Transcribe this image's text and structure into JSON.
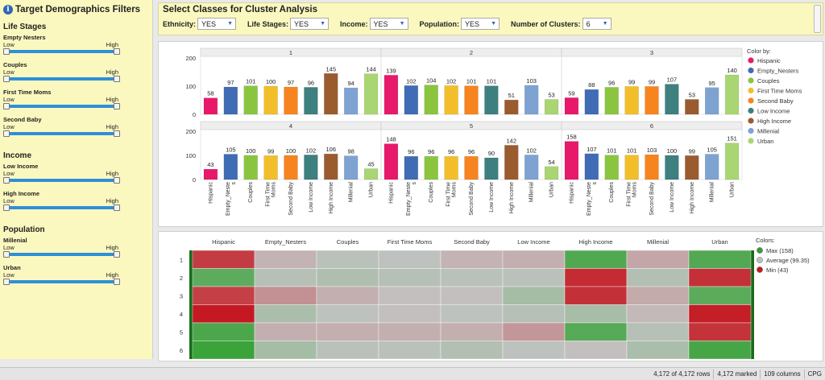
{
  "left_panel": {
    "title": "Target Demographics Filters",
    "sections": [
      {
        "title": "Life Stages",
        "sliders": [
          {
            "name": "Empty Nesters",
            "low": "Low",
            "high": "High"
          },
          {
            "name": "Couples",
            "low": "Low",
            "high": "High"
          },
          {
            "name": "First Time Moms",
            "low": "Low",
            "high": "High"
          },
          {
            "name": "Second Baby",
            "low": "Low",
            "high": "High"
          }
        ]
      },
      {
        "title": "Income",
        "sliders": [
          {
            "name": "Low Income",
            "low": "Low",
            "high": "High"
          },
          {
            "name": "High Income",
            "low": "Low",
            "high": "High"
          }
        ]
      },
      {
        "title": "Population",
        "sliders": [
          {
            "name": "Millenial",
            "low": "Low",
            "high": "High"
          },
          {
            "name": "Urban",
            "low": "Low",
            "high": "High"
          }
        ]
      }
    ]
  },
  "top_bar": {
    "title": "Select Classes for Cluster Analysis",
    "filters": [
      {
        "label": "Ethnicity:",
        "value": "YES"
      },
      {
        "label": "Life Stages:",
        "value": "YES"
      },
      {
        "label": "Income:",
        "value": "YES"
      },
      {
        "label": "Population:",
        "value": "YES"
      },
      {
        "label": "Number of Clusters:",
        "value": "6"
      }
    ]
  },
  "chart_data": [
    {
      "type": "bar",
      "panels": [
        "1",
        "2",
        "3",
        "4",
        "5",
        "6"
      ],
      "categories": [
        "Hispanic",
        "Empty_Nesters",
        "Couples",
        "First Time Moms",
        "Second Baby",
        "Low Income",
        "High Income",
        "Millenial",
        "Urban"
      ],
      "category_labels": [
        "Hispanic",
        "Empty_Neste\ns",
        "Couples",
        "First Time\nMoms",
        "Second Baby",
        "Low Income",
        "High Income",
        "Millenial",
        "Urban"
      ],
      "values": [
        [
          58,
          97,
          101,
          100,
          97,
          96,
          145,
          94,
          144
        ],
        [
          139,
          102,
          104,
          102,
          101,
          101,
          51,
          103,
          53
        ],
        [
          59,
          88,
          96,
          99,
          99,
          107,
          53,
          95,
          140
        ],
        [
          43,
          105,
          100,
          99,
          100,
          102,
          106,
          98,
          45
        ],
        [
          148,
          96,
          96,
          96,
          96,
          90,
          142,
          102,
          54
        ],
        [
          158,
          107,
          101,
          101,
          103,
          100,
          99,
          105,
          151
        ]
      ],
      "ylim": [
        0,
        200
      ],
      "yticks": [
        0,
        100,
        200
      ],
      "legend_title": "Color by:",
      "legend_placement": "right",
      "colors": [
        "#e8196a",
        "#3f6cb4",
        "#8bc53f",
        "#f2bf2a",
        "#f7841f",
        "#3e7f7f",
        "#9a5b2e",
        "#7ea3d2",
        "#a9d672"
      ]
    },
    {
      "type": "heatmap",
      "columns": [
        "Hispanic",
        "Empty_Nesters",
        "Couples",
        "First Time Moms",
        "Second Baby",
        "Low Income",
        "High Income",
        "Millenial",
        "Urban"
      ],
      "rows": [
        "1",
        "2",
        "3",
        "4",
        "5",
        "6"
      ],
      "values": [
        [
          58,
          97,
          101,
          100,
          97,
          96,
          145,
          94,
          144
        ],
        [
          139,
          102,
          104,
          102,
          101,
          101,
          51,
          103,
          53
        ],
        [
          59,
          88,
          96,
          99,
          99,
          107,
          53,
          95,
          140
        ],
        [
          43,
          105,
          100,
          99,
          100,
          102,
          106,
          98,
          45
        ],
        [
          148,
          96,
          96,
          96,
          96,
          90,
          142,
          102,
          54
        ],
        [
          158,
          107,
          101,
          101,
          103,
          100,
          99,
          105,
          151
        ]
      ],
      "legend_title": "Colors:",
      "legend_placement": "right",
      "legend": [
        {
          "label": "Max (158)",
          "color": "#3a9b3a"
        },
        {
          "label": "Average (99.35)",
          "color": "#c0c0c0"
        },
        {
          "label": "Min (43)",
          "color": "#c41922"
        }
      ],
      "scale": {
        "min": 43,
        "avg": 99.35,
        "max": 158,
        "min_color": "#c41922",
        "avg_color": "#c3c3c3",
        "max_color": "#3aa33a"
      }
    }
  ],
  "status_bar": [
    "4,172 of 4,172 rows",
    "4,172 marked",
    "109 columns",
    "CPG"
  ]
}
